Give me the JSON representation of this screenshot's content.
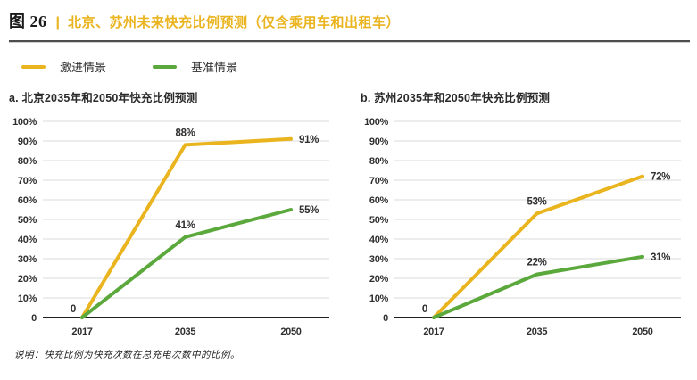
{
  "header": {
    "figure_label": "图 26",
    "divider": "|",
    "title": "北京、苏州未来快充比例预测（仅含乘用车和出租车）"
  },
  "legend": [
    {
      "label": "激进情景",
      "color": "#eab41f"
    },
    {
      "label": "基准情景",
      "color": "#5ba93c"
    }
  ],
  "colors": {
    "aggressive": "#eab41f",
    "baseline": "#5ba93c",
    "grid": "#dbdbdb",
    "axis": "#1e1e1e",
    "text": "#2e2e2e"
  },
  "footnote": "说明：快充比例为快充次数在总充电次数中的比例。",
  "chart_data": [
    {
      "type": "line",
      "title": "a. 北京2035年和2050年快充比例预测",
      "categories": [
        "2017",
        "2035",
        "2050"
      ],
      "series": [
        {
          "name": "激进情景",
          "color": "#eab41f",
          "values": [
            0,
            88,
            91
          ],
          "labels": [
            "0",
            "88%",
            "91%"
          ]
        },
        {
          "name": "基准情景",
          "color": "#5ba93c",
          "values": [
            0,
            41,
            55
          ],
          "labels": [
            "",
            "41%",
            "55%"
          ]
        }
      ],
      "ylim": [
        0,
        100
      ],
      "yticks": [
        "100%",
        "90%",
        "80%",
        "70%",
        "60%",
        "50%",
        "40%",
        "30%",
        "20%",
        "10%",
        "0"
      ],
      "grid": true,
      "legend_position": "top-shared",
      "xlabel": "",
      "ylabel": ""
    },
    {
      "type": "line",
      "title": "b. 苏州2035年和2050年快充比例预测",
      "categories": [
        "2017",
        "2035",
        "2050"
      ],
      "series": [
        {
          "name": "激进情景",
          "color": "#eab41f",
          "values": [
            0,
            53,
            72
          ],
          "labels": [
            "0",
            "53%",
            "72%"
          ]
        },
        {
          "name": "基准情景",
          "color": "#5ba93c",
          "values": [
            0,
            22,
            31
          ],
          "labels": [
            "",
            "22%",
            "31%"
          ]
        }
      ],
      "ylim": [
        0,
        100
      ],
      "yticks": [
        "100%",
        "90%",
        "80%",
        "70%",
        "60%",
        "50%",
        "40%",
        "30%",
        "20%",
        "10%",
        "0"
      ],
      "grid": true,
      "legend_position": "top-shared",
      "xlabel": "",
      "ylabel": ""
    }
  ]
}
